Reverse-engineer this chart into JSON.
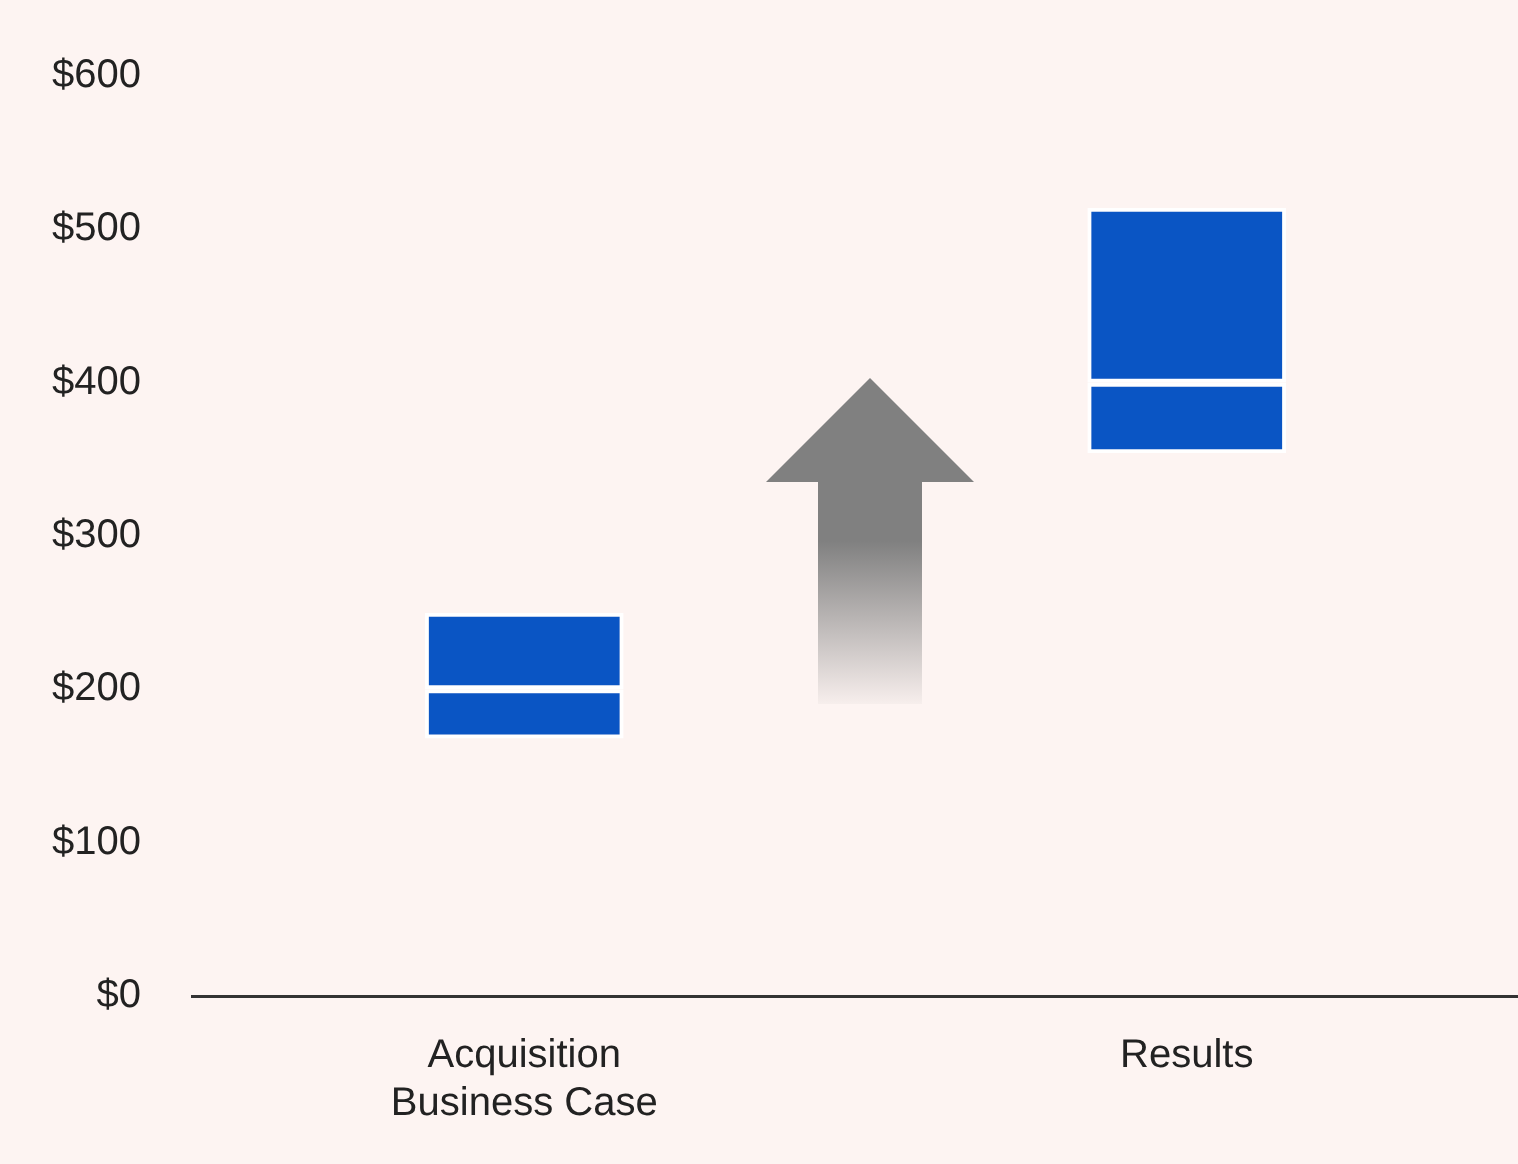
{
  "chart_data": {
    "type": "bar",
    "categories": [
      "Acquisition Business Case",
      "Results"
    ],
    "series": [
      {
        "color": "#0a55c4",
        "base": [
          168,
          354
        ],
        "values": [
          32,
          46
        ]
      },
      {
        "color": "#0a55c4",
        "base": [
          200,
          400
        ],
        "values": [
          50,
          114
        ]
      }
    ],
    "ylim": [
      0,
      600
    ],
    "yticks": [
      {
        "value": 0,
        "label": "$0"
      },
      {
        "value": 100,
        "label": "$100"
      },
      {
        "value": 200,
        "label": "$200"
      },
      {
        "value": 300,
        "label": "$300"
      },
      {
        "value": 400,
        "label": "$400"
      },
      {
        "value": 500,
        "label": "$500"
      },
      {
        "value": 600,
        "label": "$600"
      }
    ],
    "legend": false
  }
}
